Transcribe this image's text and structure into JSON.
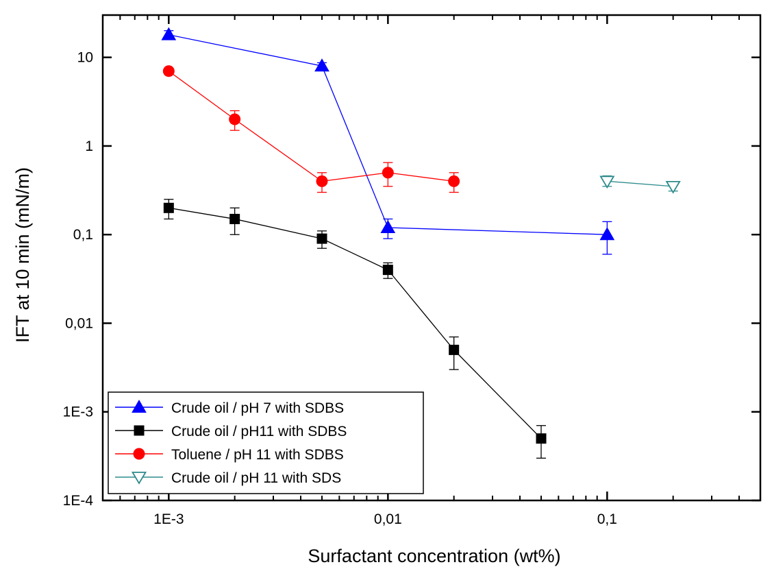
{
  "chart_data": {
    "type": "scatter",
    "xscale": "log",
    "yscale": "log",
    "xlim": [
      0.0005,
      0.5
    ],
    "ylim": [
      0.0001,
      30
    ],
    "xlabel": "Surfactant concentration (wt%)",
    "ylabel": "IFT at 10 min (mN/m)",
    "grid": false,
    "legend_position": "bottom-left",
    "xticks": [
      {
        "value": 0.001,
        "label": "1E-3"
      },
      {
        "value": 0.01,
        "label": "0,01"
      },
      {
        "value": 0.1,
        "label": "0,1"
      }
    ],
    "yticks": [
      {
        "value": 10,
        "label": "10"
      },
      {
        "value": 1,
        "label": "1"
      },
      {
        "value": 0.1,
        "label": "0,1"
      },
      {
        "value": 0.01,
        "label": "0,01"
      },
      {
        "value": 0.001,
        "label": "1E-3"
      },
      {
        "value": 0.0001,
        "label": "1E-4"
      }
    ],
    "series": [
      {
        "name": "Crude oil / pH 7 with SDBS",
        "color": "#0000ff",
        "marker": "triangle-up-filled",
        "points": [
          {
            "x": 0.001,
            "y": 18,
            "err_lo": 16,
            "err_hi": 20
          },
          {
            "x": 0.005,
            "y": 8,
            "err_lo": 7.3,
            "err_hi": 8.7
          },
          {
            "x": 0.01,
            "y": 0.12,
            "err_lo": 0.09,
            "err_hi": 0.15
          },
          {
            "x": 0.1,
            "y": 0.1,
            "err_lo": 0.06,
            "err_hi": 0.14
          }
        ]
      },
      {
        "name": "Crude oil / pH11 with SDBS",
        "color": "#000000",
        "marker": "square-filled",
        "points": [
          {
            "x": 0.001,
            "y": 0.2,
            "err_lo": 0.15,
            "err_hi": 0.25
          },
          {
            "x": 0.002,
            "y": 0.15,
            "err_lo": 0.1,
            "err_hi": 0.2
          },
          {
            "x": 0.005,
            "y": 0.09,
            "err_lo": 0.07,
            "err_hi": 0.11
          },
          {
            "x": 0.01,
            "y": 0.04,
            "err_lo": 0.032,
            "err_hi": 0.048
          },
          {
            "x": 0.02,
            "y": 0.005,
            "err_lo": 0.003,
            "err_hi": 0.007
          },
          {
            "x": 0.05,
            "y": 0.0005,
            "err_lo": 0.0003,
            "err_hi": 0.0007
          }
        ]
      },
      {
        "name": "Toluene / pH 11 with SDBS",
        "color": "#ff0000",
        "marker": "circle-filled",
        "points": [
          {
            "x": 0.001,
            "y": 7,
            "err_lo": 6.5,
            "err_hi": 7.5
          },
          {
            "x": 0.002,
            "y": 2,
            "err_lo": 1.5,
            "err_hi": 2.5
          },
          {
            "x": 0.005,
            "y": 0.4,
            "err_lo": 0.3,
            "err_hi": 0.5
          },
          {
            "x": 0.01,
            "y": 0.5,
            "err_lo": 0.35,
            "err_hi": 0.65
          },
          {
            "x": 0.02,
            "y": 0.4,
            "err_lo": 0.3,
            "err_hi": 0.5
          }
        ]
      },
      {
        "name": "Crude oil / pH 11 with SDS",
        "color": "#2e8b8b",
        "marker": "triangle-down-open",
        "points": [
          {
            "x": 0.1,
            "y": 0.4,
            "err_lo": 0.35,
            "err_hi": 0.46
          },
          {
            "x": 0.2,
            "y": 0.35,
            "err_lo": 0.31,
            "err_hi": 0.39
          }
        ]
      }
    ]
  }
}
